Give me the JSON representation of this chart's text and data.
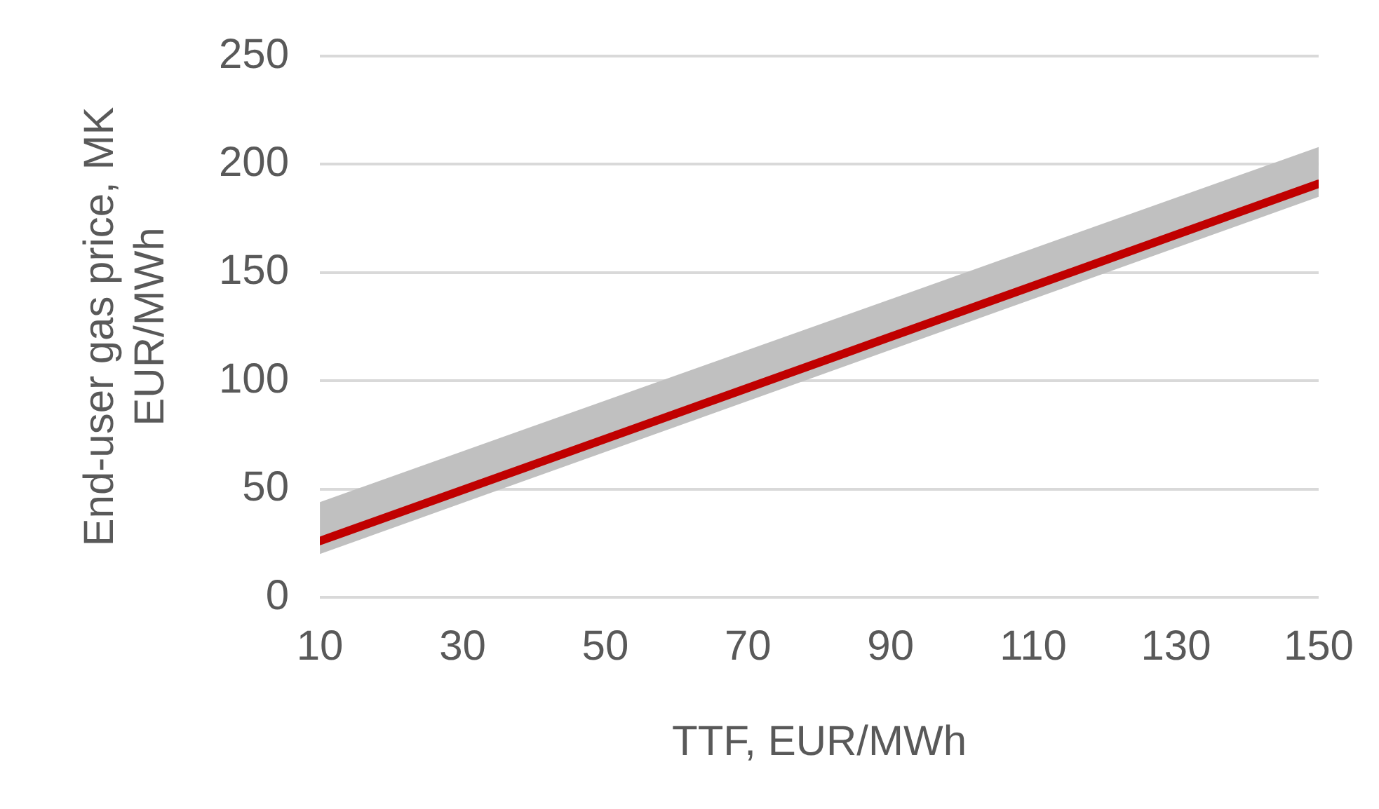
{
  "chart_data": {
    "type": "line",
    "xlabel": "TTF, EUR/MWh",
    "ylabel": "End-user gas price, MK EUR/MWh",
    "x": [
      10,
      150
    ],
    "series": [
      {
        "color": "#c00000",
        "values": [
          26,
          191
        ],
        "lower": [
          20,
          185
        ],
        "upper": [
          44,
          208
        ]
      }
    ],
    "xlim": [
      10,
      150
    ],
    "xticks": [
      10,
      30,
      50,
      70,
      90,
      110,
      130,
      150
    ],
    "ylim": [
      0,
      250
    ],
    "yticks": [
      0,
      50,
      100,
      150,
      200,
      250
    ],
    "grid": "y",
    "legend": false,
    "marker": "none",
    "line_style": "solid"
  }
}
